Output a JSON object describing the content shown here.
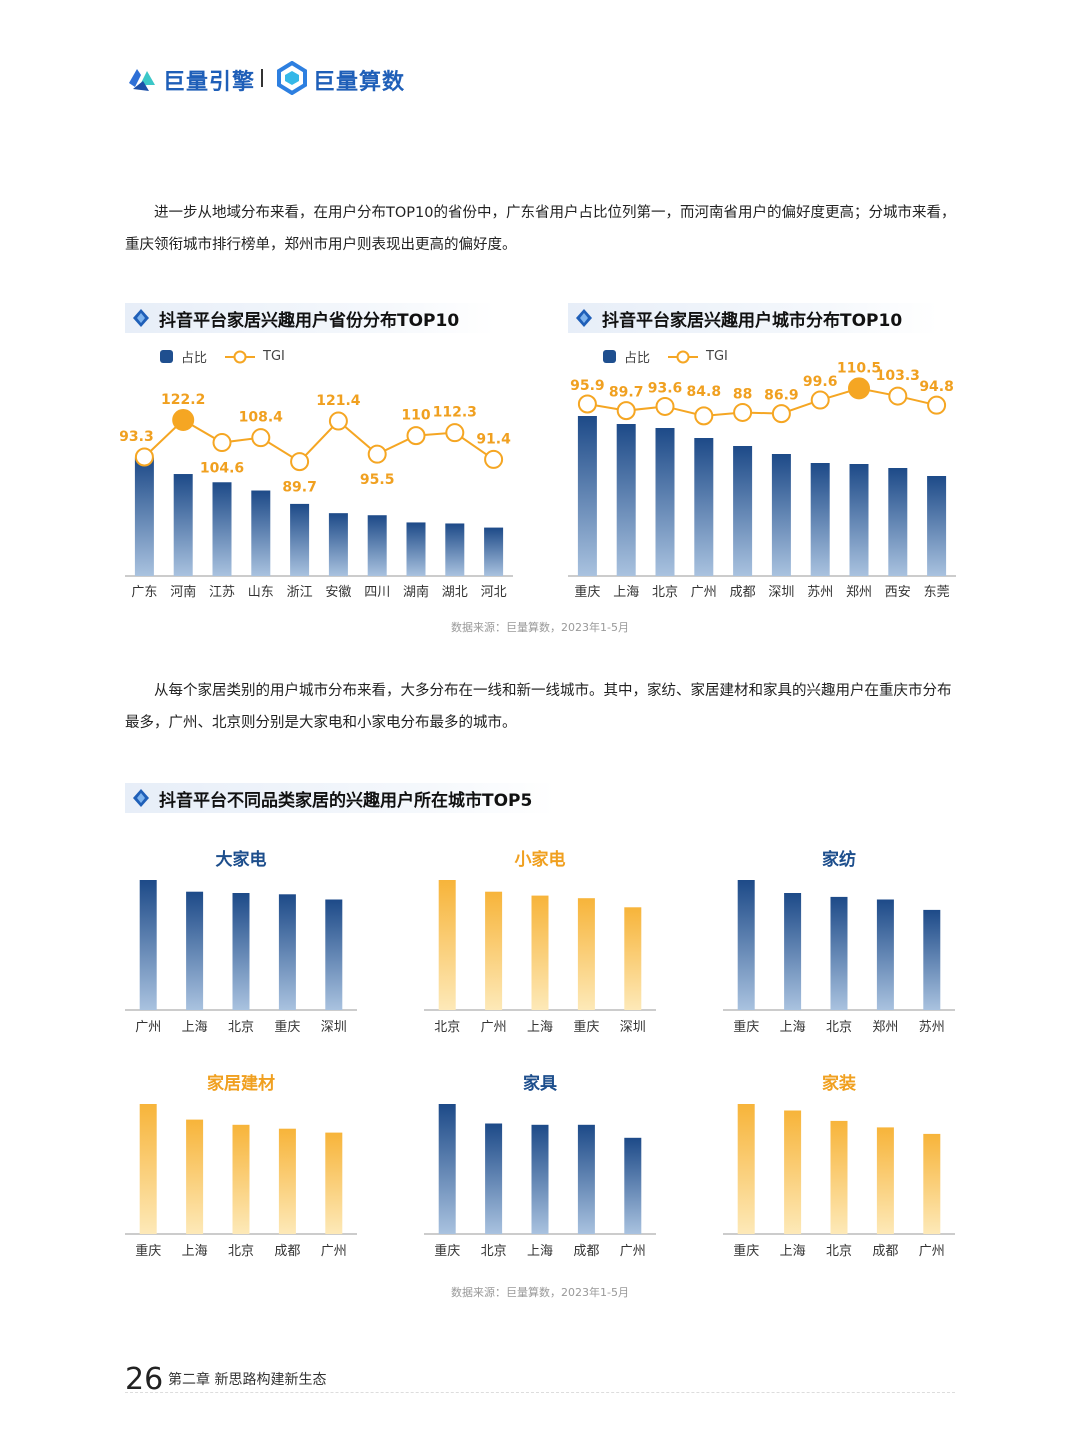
{
  "header": {
    "brand1": "巨量引擎",
    "brand2": "巨量算数"
  },
  "para1": "进一步从地域分布来看，在用户分布TOP10的省份中，广东省用户占比位列第一，而河南省用户的偏好度更高；分城市来看，重庆领衔城市排行榜单，郑州市用户则表现出更高的偏好度。",
  "para2": "从每个家居类别的用户城市分布来看，大多分布在一线和新一线城市。其中，家纺、家居建材和家具的兴趣用户在重庆市分布最多，广州、北京则分别是大家电和小家电分布最多的城市。",
  "section3_title": "抖音平台不同品类家居的兴趣用户所在城市TOP5",
  "source1": "数据来源：巨量算数，2023年1-5月",
  "source2": "数据来源：巨量算数，2023年1-5月",
  "footer": {
    "page": "26",
    "chapter": "第二章  新思路构建新生态"
  },
  "colors": {
    "navy": "#1f4f8f",
    "orange": "#f5a623",
    "title_blue": "#1d4e8c",
    "title_orange": "#f0a020"
  },
  "chart_data": [
    {
      "type": "bar",
      "title": "抖音平台家居兴趣用户省份分布TOP10",
      "legend": [
        "占比",
        "TGI"
      ],
      "categories": [
        "广东",
        "河南",
        "江苏",
        "山东",
        "浙江",
        "安徽",
        "四川",
        "湖南",
        "湖北",
        "河北"
      ],
      "series": [
        {
          "name": "占比",
          "values": [
            11.5,
            9.9,
            9.1,
            8.3,
            7.0,
            6.1,
            5.9,
            5.2,
            5.1,
            4.7
          ]
        },
        {
          "name": "TGI",
          "values": [
            93.3,
            122.2,
            104.6,
            108.4,
            89.7,
            121.4,
            95.5,
            110,
            112.3,
            91.4
          ]
        }
      ],
      "highlight": "河南"
    },
    {
      "type": "bar",
      "title": "抖音平台家居兴趣用户城市分布TOP10",
      "legend": [
        "占比",
        "TGI"
      ],
      "categories": [
        "重庆",
        "上海",
        "北京",
        "广州",
        "成都",
        "深圳",
        "苏州",
        "郑州",
        "西安",
        "东莞"
      ],
      "series": [
        {
          "name": "占比",
          "values": [
            16.0,
            15.2,
            14.8,
            13.8,
            13.0,
            12.2,
            11.3,
            11.2,
            10.8,
            10.0
          ]
        },
        {
          "name": "TGI",
          "values": [
            95.9,
            89.7,
            93.6,
            84.8,
            88,
            86.9,
            99.6,
            110.5,
            103.3,
            94.8
          ]
        }
      ],
      "highlight": "郑州"
    },
    {
      "type": "bar",
      "title": "大家电",
      "color": "navy",
      "categories": [
        "广州",
        "上海",
        "北京",
        "重庆",
        "深圳"
      ],
      "values": [
        100,
        91,
        90,
        89,
        85
      ]
    },
    {
      "type": "bar",
      "title": "小家电",
      "color": "orange",
      "categories": [
        "北京",
        "广州",
        "上海",
        "重庆",
        "深圳"
      ],
      "values": [
        100,
        91,
        88,
        86,
        79
      ]
    },
    {
      "type": "bar",
      "title": "家纺",
      "color": "navy",
      "categories": [
        "重庆",
        "上海",
        "北京",
        "郑州",
        "苏州"
      ],
      "values": [
        100,
        90,
        87,
        85,
        77
      ]
    },
    {
      "type": "bar",
      "title": "家居建材",
      "color": "orange",
      "categories": [
        "重庆",
        "上海",
        "北京",
        "成都",
        "广州"
      ],
      "values": [
        100,
        88,
        84,
        81,
        78
      ]
    },
    {
      "type": "bar",
      "title": "家具",
      "color": "navy",
      "categories": [
        "重庆",
        "北京",
        "上海",
        "成都",
        "广州"
      ],
      "values": [
        100,
        85,
        84,
        84,
        74
      ]
    },
    {
      "type": "bar",
      "title": "家装",
      "color": "orange",
      "categories": [
        "重庆",
        "上海",
        "北京",
        "成都",
        "广州"
      ],
      "values": [
        100,
        95,
        87,
        82,
        77
      ]
    }
  ]
}
